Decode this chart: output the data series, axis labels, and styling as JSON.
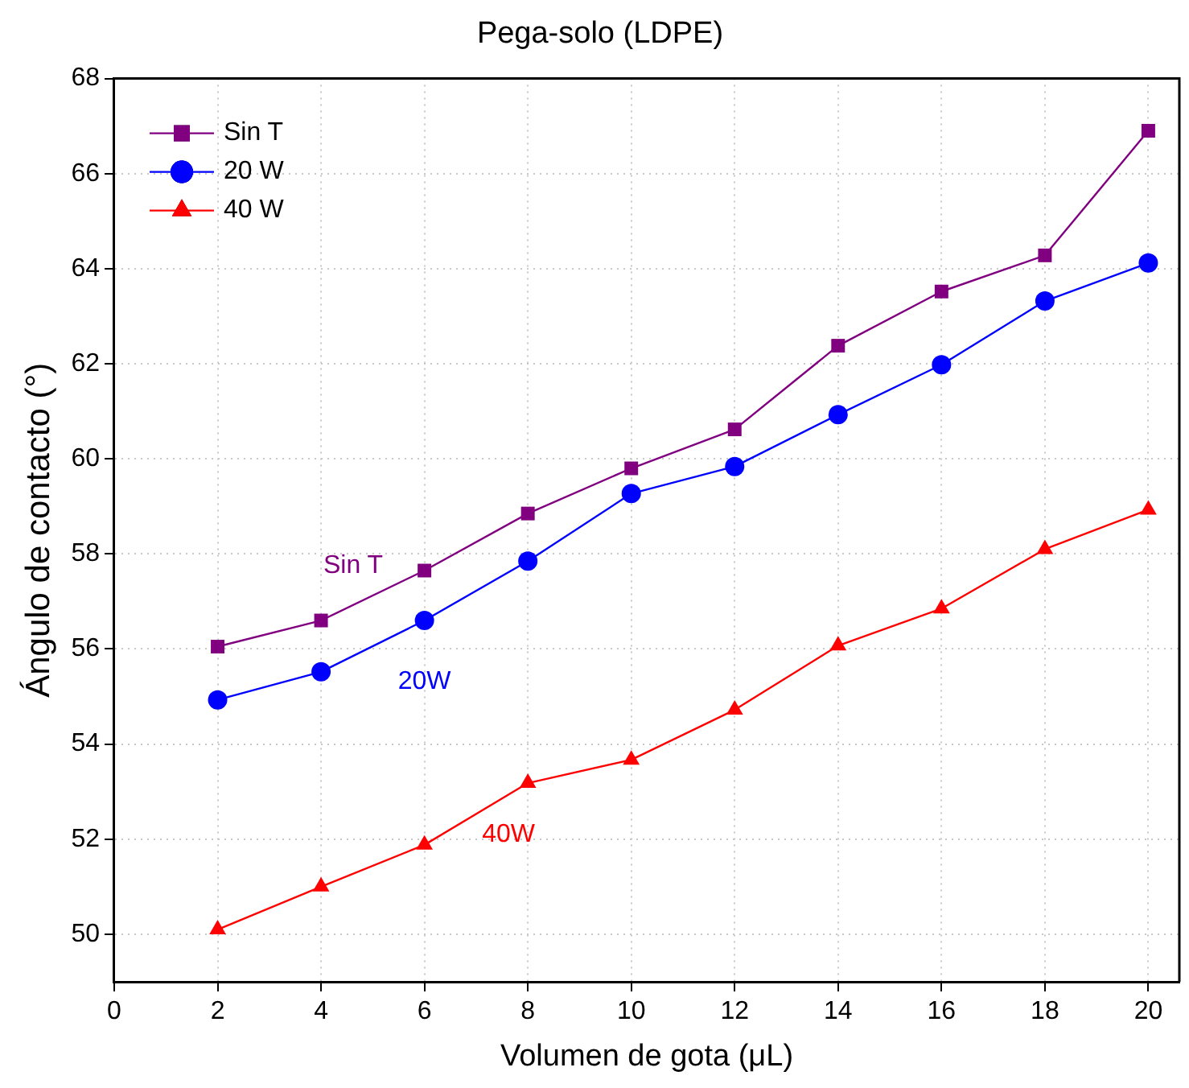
{
  "chart_data": {
    "type": "line",
    "title": "Pega-solo (LDPE)",
    "xlabel": "Volumen de gota (μL)",
    "ylabel": "Ángulo de contacto (°)",
    "x": [
      2,
      4,
      6,
      8,
      10,
      12,
      14,
      16,
      18,
      20
    ],
    "series": [
      {
        "name": "Sin T",
        "color": "#800080",
        "marker": "square",
        "values": [
          56.05,
          56.6,
          57.65,
          58.85,
          59.8,
          60.62,
          62.38,
          63.52,
          64.28,
          66.9
        ]
      },
      {
        "name": "20 W",
        "color": "#0000ff",
        "marker": "circle",
        "values": [
          54.93,
          55.52,
          56.6,
          57.85,
          59.27,
          59.84,
          60.93,
          61.98,
          63.32,
          64.12
        ]
      },
      {
        "name": "40 W",
        "color": "#ff0000",
        "marker": "triangle",
        "values": [
          50.1,
          51.0,
          51.88,
          53.18,
          53.67,
          54.72,
          56.07,
          56.85,
          58.1,
          58.93
        ]
      }
    ],
    "annotations": [
      "Sin T",
      "20W",
      "40W"
    ],
    "xlim": [
      0,
      20.6
    ],
    "xticks": [
      0,
      2,
      4,
      6,
      8,
      10,
      12,
      14,
      16,
      18,
      20
    ],
    "ylim": [
      49,
      68
    ],
    "yticks": [
      50,
      52,
      54,
      56,
      58,
      60,
      62,
      64,
      66,
      68
    ],
    "grid": true,
    "legend": "top left",
    "line_style": "solid"
  }
}
